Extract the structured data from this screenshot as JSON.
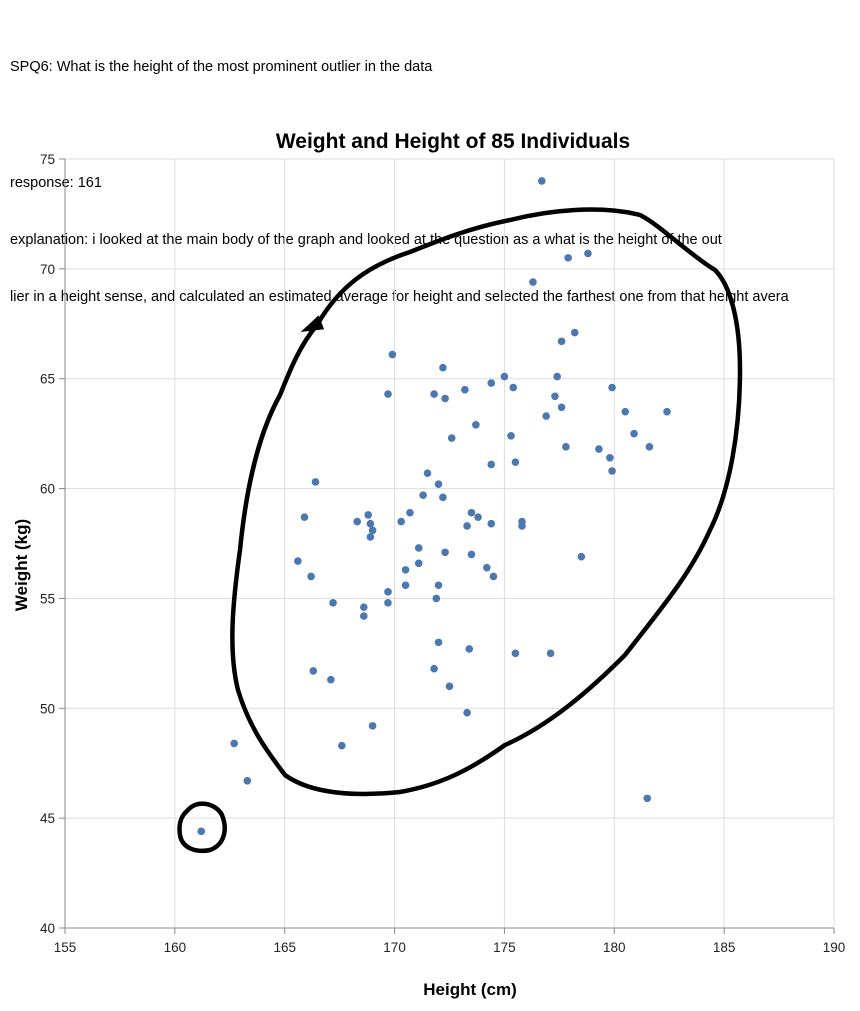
{
  "annotation": {
    "question": "SPQ6: What is the height of the most prominent outlier in the data",
    "response": "response: 161",
    "explanation_line1": "explanation: i looked at the main body of the graph and looked at the question as a what is the height of the out",
    "explanation_line2": "lier in a height sense, and calculated an estimated average for height and selected the farthest one from that height avera"
  },
  "chart_data": {
    "type": "scatter",
    "title": "Weight and Height of 85 Individuals",
    "xlabel": "Height (cm)",
    "ylabel": "Weight (kg)",
    "xlim": [
      155,
      190
    ],
    "ylim": [
      40,
      75
    ],
    "xticks": [
      155,
      160,
      165,
      170,
      175,
      180,
      185,
      190
    ],
    "yticks": [
      40,
      45,
      50,
      55,
      60,
      65,
      70,
      75
    ],
    "grid": true,
    "point_color": "#4c78b0",
    "handwritten_circles_color": "#000000",
    "points": [
      [
        176.7,
        74.0
      ],
      [
        178.8,
        70.7
      ],
      [
        177.9,
        70.5
      ],
      [
        176.3,
        69.4
      ],
      [
        178.2,
        67.1
      ],
      [
        177.6,
        66.7
      ],
      [
        169.9,
        66.1
      ],
      [
        172.2,
        65.5
      ],
      [
        175.0,
        65.1
      ],
      [
        177.4,
        65.1
      ],
      [
        174.4,
        64.8
      ],
      [
        175.4,
        64.6
      ],
      [
        173.2,
        64.5
      ],
      [
        179.9,
        64.6
      ],
      [
        169.7,
        64.3
      ],
      [
        171.8,
        64.3
      ],
      [
        172.3,
        64.1
      ],
      [
        177.3,
        64.2
      ],
      [
        177.6,
        63.7
      ],
      [
        180.5,
        63.5
      ],
      [
        182.4,
        63.5
      ],
      [
        176.9,
        63.3
      ],
      [
        173.7,
        62.9
      ],
      [
        180.9,
        62.5
      ],
      [
        172.6,
        62.3
      ],
      [
        175.3,
        62.4
      ],
      [
        177.8,
        61.9
      ],
      [
        179.3,
        61.8
      ],
      [
        181.6,
        61.9
      ],
      [
        179.8,
        61.4
      ],
      [
        174.4,
        61.1
      ],
      [
        175.5,
        61.2
      ],
      [
        179.9,
        60.8
      ],
      [
        171.5,
        60.7
      ],
      [
        166.4,
        60.3
      ],
      [
        172.0,
        60.2
      ],
      [
        171.3,
        59.7
      ],
      [
        172.2,
        59.6
      ],
      [
        173.5,
        58.9
      ],
      [
        173.8,
        58.7
      ],
      [
        170.7,
        58.9
      ],
      [
        165.9,
        58.7
      ],
      [
        168.8,
        58.8
      ],
      [
        168.3,
        58.5
      ],
      [
        168.9,
        58.4
      ],
      [
        170.3,
        58.5
      ],
      [
        174.4,
        58.4
      ],
      [
        173.3,
        58.3
      ],
      [
        175.8,
        58.5
      ],
      [
        175.8,
        58.3
      ],
      [
        169.0,
        58.1
      ],
      [
        168.9,
        57.8
      ],
      [
        171.1,
        57.3
      ],
      [
        172.3,
        57.1
      ],
      [
        173.5,
        57.0
      ],
      [
        178.5,
        56.9
      ],
      [
        165.6,
        56.7
      ],
      [
        171.1,
        56.6
      ],
      [
        170.5,
        56.3
      ],
      [
        174.2,
        56.4
      ],
      [
        166.2,
        56.0
      ],
      [
        174.5,
        56.0
      ],
      [
        172.0,
        55.6
      ],
      [
        170.5,
        55.6
      ],
      [
        169.7,
        55.3
      ],
      [
        171.9,
        55.0
      ],
      [
        167.2,
        54.8
      ],
      [
        169.7,
        54.8
      ],
      [
        168.6,
        54.6
      ],
      [
        168.6,
        54.2
      ],
      [
        172.0,
        53.0
      ],
      [
        173.4,
        52.7
      ],
      [
        175.5,
        52.5
      ],
      [
        177.1,
        52.5
      ],
      [
        171.8,
        51.8
      ],
      [
        166.3,
        51.7
      ],
      [
        167.1,
        51.3
      ],
      [
        172.5,
        51.0
      ],
      [
        173.3,
        49.8
      ],
      [
        169.0,
        49.2
      ],
      [
        162.7,
        48.4
      ],
      [
        167.6,
        48.3
      ],
      [
        163.3,
        46.7
      ],
      [
        181.5,
        45.9
      ],
      [
        161.2,
        44.4
      ]
    ]
  }
}
